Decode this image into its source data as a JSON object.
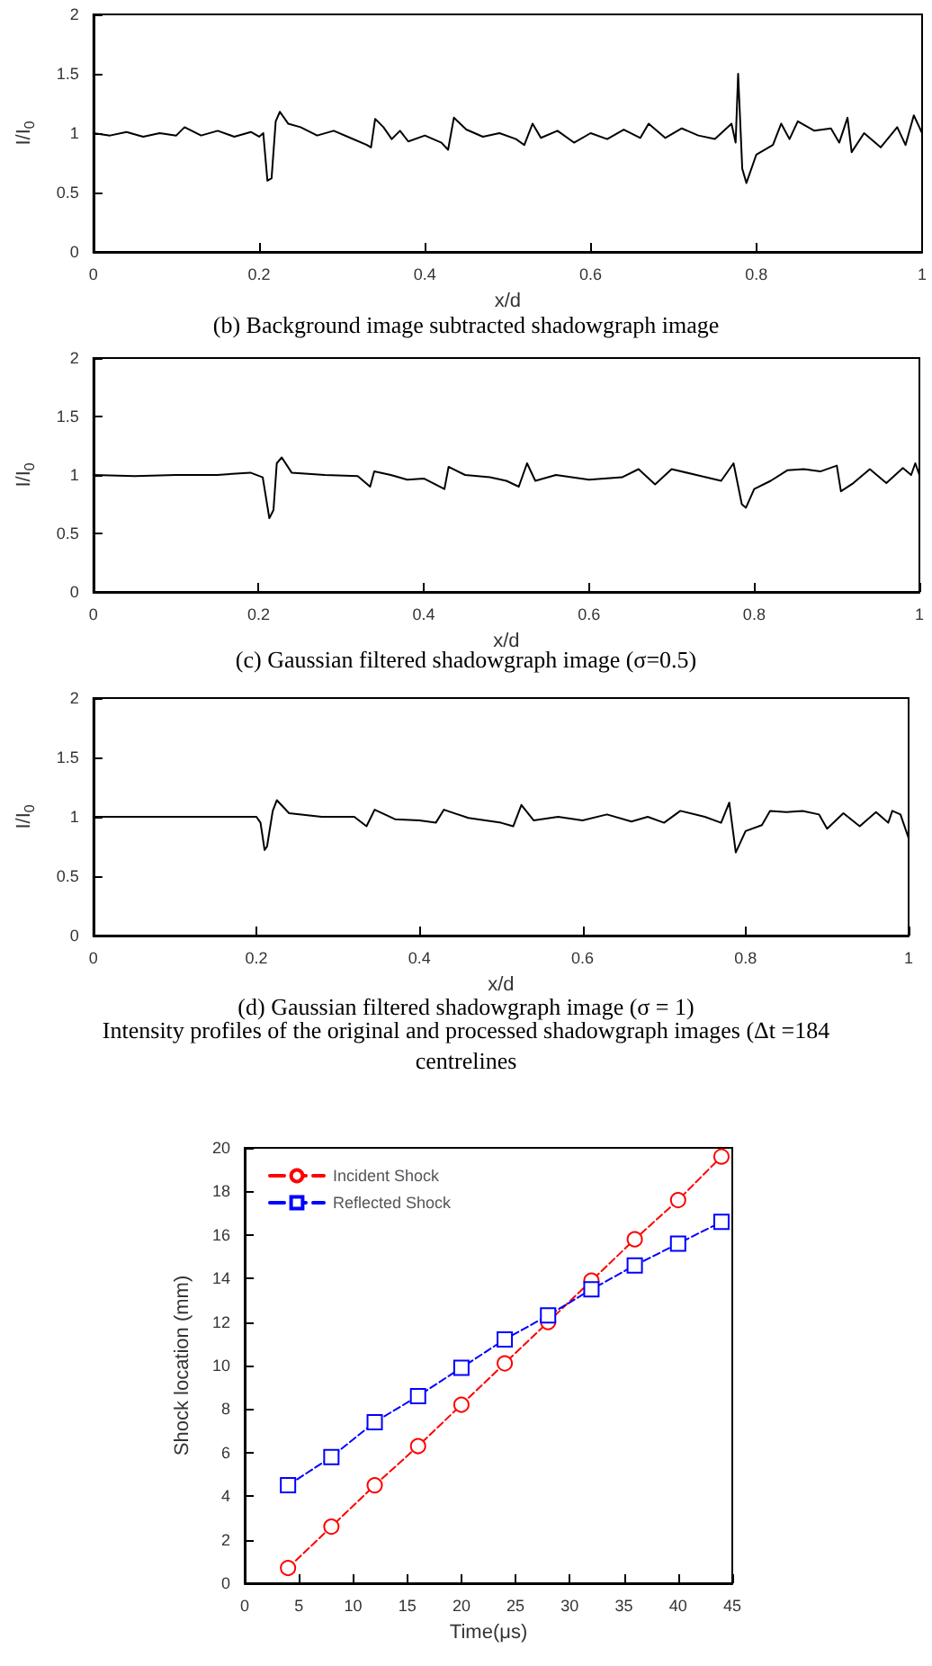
{
  "chart_data": [
    {
      "type": "line",
      "title": "(b) Background image subtracted shadowgraph image",
      "xlabel": "x/d",
      "ylabel": "I/I$_{0}$",
      "xlim": [
        0,
        1
      ],
      "xticks": [
        0,
        0.2,
        0.4,
        0.6,
        0.8,
        1
      ],
      "ylim": [
        0,
        2
      ],
      "yticks": [
        0,
        0.5,
        1,
        1.5,
        2
      ],
      "marker": "none",
      "series": [
        {
          "color": "#000000",
          "x": [
            0,
            0.02,
            0.04,
            0.06,
            0.08,
            0.1,
            0.11,
            0.13,
            0.15,
            0.17,
            0.19,
            0.2,
            0.205,
            0.21,
            0.215,
            0.22,
            0.225,
            0.235,
            0.25,
            0.27,
            0.29,
            0.31,
            0.33,
            0.335,
            0.34,
            0.35,
            0.36,
            0.37,
            0.38,
            0.4,
            0.42,
            0.428,
            0.435,
            0.45,
            0.47,
            0.49,
            0.51,
            0.52,
            0.53,
            0.54,
            0.56,
            0.58,
            0.6,
            0.62,
            0.64,
            0.66,
            0.67,
            0.69,
            0.71,
            0.73,
            0.75,
            0.77,
            0.775,
            0.778,
            0.783,
            0.788,
            0.8,
            0.82,
            0.83,
            0.84,
            0.85,
            0.87,
            0.89,
            0.9,
            0.91,
            0.915,
            0.93,
            0.95,
            0.97,
            0.98,
            0.99,
            1
          ],
          "values": [
            1.0,
            0.98,
            1.01,
            0.97,
            1.0,
            0.98,
            1.05,
            0.98,
            1.02,
            0.97,
            1.01,
            0.97,
            1.0,
            0.6,
            0.62,
            1.1,
            1.18,
            1.08,
            1.05,
            0.98,
            1.02,
            0.96,
            0.9,
            0.88,
            1.12,
            1.05,
            0.95,
            1.02,
            0.93,
            0.98,
            0.92,
            0.86,
            1.13,
            1.03,
            0.97,
            1.0,
            0.95,
            0.9,
            1.08,
            0.96,
            1.02,
            0.92,
            1.0,
            0.95,
            1.03,
            0.96,
            1.08,
            0.96,
            1.04,
            0.98,
            0.95,
            1.08,
            0.92,
            1.5,
            0.7,
            0.58,
            0.82,
            0.9,
            1.08,
            0.95,
            1.1,
            1.02,
            1.04,
            0.92,
            1.13,
            0.84,
            1.0,
            0.88,
            1.05,
            0.9,
            1.15,
            1.0
          ]
        }
      ]
    },
    {
      "type": "line",
      "title": "(c) Gaussian filtered shadowgraph image (σ=0.5)",
      "xlabel": "x/d",
      "ylabel": "I/I$_{0}$",
      "xlim": [
        0,
        1
      ],
      "xticks": [
        0,
        0.2,
        0.4,
        0.6,
        0.8,
        1
      ],
      "ylim": [
        0,
        2
      ],
      "yticks": [
        0,
        0.5,
        1,
        1.5,
        2
      ],
      "marker": "none",
      "series": [
        {
          "color": "#000000",
          "x": [
            0,
            0.05,
            0.1,
            0.15,
            0.19,
            0.205,
            0.213,
            0.218,
            0.222,
            0.228,
            0.24,
            0.28,
            0.32,
            0.335,
            0.34,
            0.36,
            0.38,
            0.4,
            0.425,
            0.43,
            0.45,
            0.48,
            0.5,
            0.515,
            0.525,
            0.535,
            0.56,
            0.6,
            0.64,
            0.66,
            0.68,
            0.7,
            0.73,
            0.76,
            0.775,
            0.785,
            0.79,
            0.8,
            0.82,
            0.84,
            0.86,
            0.88,
            0.9,
            0.905,
            0.92,
            0.94,
            0.96,
            0.98,
            0.99,
            0.995,
            1
          ],
          "values": [
            1.0,
            0.99,
            1.0,
            1.0,
            1.02,
            0.98,
            0.63,
            0.7,
            1.1,
            1.15,
            1.02,
            1.0,
            0.99,
            0.9,
            1.03,
            1.0,
            0.96,
            0.97,
            0.88,
            1.07,
            1.0,
            0.98,
            0.95,
            0.9,
            1.1,
            0.95,
            1.0,
            0.96,
            0.98,
            1.05,
            0.92,
            1.05,
            1.0,
            0.95,
            1.1,
            0.75,
            0.72,
            0.88,
            0.95,
            1.04,
            1.05,
            1.03,
            1.08,
            0.86,
            0.93,
            1.05,
            0.93,
            1.06,
            1.0,
            1.1,
            1.0
          ]
        }
      ]
    },
    {
      "type": "line",
      "title": "(d) Gaussian filtered shadowgraph image (σ = 1)",
      "xlabel": "x/d",
      "ylabel": "I/I$_{0}$",
      "xlim": [
        0,
        1
      ],
      "xticks": [
        0,
        0.2,
        0.4,
        0.6,
        0.8,
        1
      ],
      "ylim": [
        0,
        2
      ],
      "yticks": [
        0,
        0.5,
        1,
        1.5,
        2
      ],
      "marker": "none",
      "annotations": [
        "Intensity profiles of the original and processed shadowgraph images (Δt =184",
        "centrelines"
      ],
      "series": [
        {
          "color": "#000000",
          "x": [
            0,
            0.1,
            0.2,
            0.205,
            0.21,
            0.213,
            0.22,
            0.225,
            0.24,
            0.28,
            0.32,
            0.335,
            0.345,
            0.37,
            0.4,
            0.42,
            0.43,
            0.46,
            0.5,
            0.515,
            0.525,
            0.54,
            0.57,
            0.6,
            0.63,
            0.66,
            0.68,
            0.7,
            0.72,
            0.75,
            0.77,
            0.78,
            0.788,
            0.8,
            0.82,
            0.83,
            0.85,
            0.87,
            0.89,
            0.9,
            0.92,
            0.94,
            0.96,
            0.975,
            0.98,
            0.99,
            1
          ],
          "values": [
            1.0,
            1.0,
            1.0,
            0.95,
            0.72,
            0.75,
            1.05,
            1.14,
            1.03,
            1.0,
            1.0,
            0.92,
            1.06,
            0.98,
            0.97,
            0.95,
            1.06,
            0.99,
            0.95,
            0.92,
            1.1,
            0.97,
            1.0,
            0.97,
            1.02,
            0.96,
            1.0,
            0.95,
            1.05,
            1.0,
            0.95,
            1.12,
            0.7,
            0.88,
            0.93,
            1.05,
            1.04,
            1.05,
            1.02,
            0.9,
            1.03,
            0.92,
            1.04,
            0.95,
            1.05,
            1.02,
            0.82
          ]
        }
      ]
    },
    {
      "type": "line",
      "xlabel": "Time(μs)",
      "ylabel": "Shock location (mm)",
      "xlim": [
        0,
        45
      ],
      "xticks": [
        0,
        5,
        10,
        15,
        20,
        25,
        30,
        35,
        40,
        45
      ],
      "ylim": [
        0,
        20
      ],
      "yticks": [
        0,
        2,
        4,
        6,
        8,
        10,
        12,
        14,
        16,
        18,
        20
      ],
      "legend": "top left",
      "line_style": "dashed",
      "x": [
        4,
        8,
        12,
        16,
        20,
        24,
        28,
        32,
        36,
        40,
        44
      ],
      "series": [
        {
          "name": "Incident Shock",
          "color": "#ff0000",
          "marker": "circle",
          "values": [
            0.7,
            2.6,
            4.5,
            6.3,
            8.2,
            10.1,
            12.0,
            13.9,
            15.8,
            17.6,
            19.6
          ]
        },
        {
          "name": "Reflected Shock",
          "color": "#0000ff",
          "marker": "square",
          "values": [
            4.5,
            5.8,
            7.4,
            8.6,
            9.9,
            11.2,
            12.3,
            13.5,
            14.6,
            15.6,
            16.6
          ]
        }
      ]
    }
  ]
}
